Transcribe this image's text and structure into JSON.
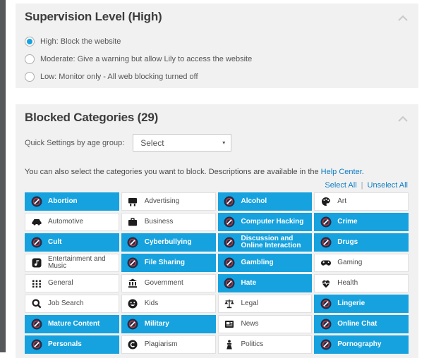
{
  "supervision": {
    "title": "Supervision Level (High)",
    "options": [
      {
        "label": "High: Block the website",
        "selected": true
      },
      {
        "label": "Moderate: Give a warning but allow Lily to access the website",
        "selected": false
      },
      {
        "label": "Low: Monitor only - All web blocking turned off",
        "selected": false
      }
    ]
  },
  "categories": {
    "title": "Blocked Categories (29)",
    "quick_settings_label": "Quick Settings by age group:",
    "dropdown_value": "Select",
    "description_prefix": "You can also select the categories you want to block. Descriptions are available in the ",
    "help_link": "Help Center",
    "description_suffix": ".",
    "select_all": "Select All",
    "unselect_all": "Unselect All",
    "tiles": [
      {
        "label": "Abortion",
        "blocked": true,
        "icon": "blocked-icon"
      },
      {
        "label": "Advertising",
        "blocked": false,
        "icon": "billboard-icon"
      },
      {
        "label": "Alcohol",
        "blocked": true,
        "icon": "blocked-icon"
      },
      {
        "label": "Art",
        "blocked": false,
        "icon": "palette-icon"
      },
      {
        "label": "Automotive",
        "blocked": false,
        "icon": "car-icon"
      },
      {
        "label": "Business",
        "blocked": false,
        "icon": "briefcase-icon"
      },
      {
        "label": "Computer Hacking",
        "blocked": true,
        "icon": "blocked-icon"
      },
      {
        "label": "Crime",
        "blocked": true,
        "icon": "blocked-icon"
      },
      {
        "label": "Cult",
        "blocked": true,
        "icon": "blocked-icon"
      },
      {
        "label": "Cyberbullying",
        "blocked": true,
        "icon": "blocked-icon"
      },
      {
        "label": "Discussion and Online Interaction",
        "blocked": true,
        "icon": "blocked-icon"
      },
      {
        "label": "Drugs",
        "blocked": true,
        "icon": "blocked-icon"
      },
      {
        "label": "Entertainment and Music",
        "blocked": false,
        "icon": "music-note-icon"
      },
      {
        "label": "File Sharing",
        "blocked": true,
        "icon": "blocked-icon"
      },
      {
        "label": "Gambling",
        "blocked": true,
        "icon": "blocked-icon"
      },
      {
        "label": "Gaming",
        "blocked": false,
        "icon": "gamepad-icon"
      },
      {
        "label": "General",
        "blocked": false,
        "icon": "grid-icon"
      },
      {
        "label": "Government",
        "blocked": false,
        "icon": "bank-icon"
      },
      {
        "label": "Hate",
        "blocked": true,
        "icon": "blocked-icon"
      },
      {
        "label": "Health",
        "blocked": false,
        "icon": "heart-pulse-icon"
      },
      {
        "label": "Job Search",
        "blocked": false,
        "icon": "magnifier-icon"
      },
      {
        "label": "Kids",
        "blocked": false,
        "icon": "smiley-icon"
      },
      {
        "label": "Legal",
        "blocked": false,
        "icon": "scales-icon"
      },
      {
        "label": "Lingerie",
        "blocked": true,
        "icon": "blocked-icon"
      },
      {
        "label": "Mature Content",
        "blocked": true,
        "icon": "blocked-icon"
      },
      {
        "label": "Military",
        "blocked": true,
        "icon": "blocked-icon"
      },
      {
        "label": "News",
        "blocked": false,
        "icon": "newspaper-icon"
      },
      {
        "label": "Online Chat",
        "blocked": true,
        "icon": "blocked-icon"
      },
      {
        "label": "Personals",
        "blocked": true,
        "icon": "blocked-icon"
      },
      {
        "label": "Plagiarism",
        "blocked": false,
        "icon": "copyright-icon"
      },
      {
        "label": "Politics",
        "blocked": false,
        "icon": "podium-icon"
      },
      {
        "label": "Pornography",
        "blocked": true,
        "icon": "blocked-icon"
      }
    ]
  },
  "colors": {
    "accent_blue": "#16a2de",
    "link_blue": "#0d7dc1",
    "panel_gray": "#f1f1f2",
    "strip_gray": "#57585a"
  }
}
